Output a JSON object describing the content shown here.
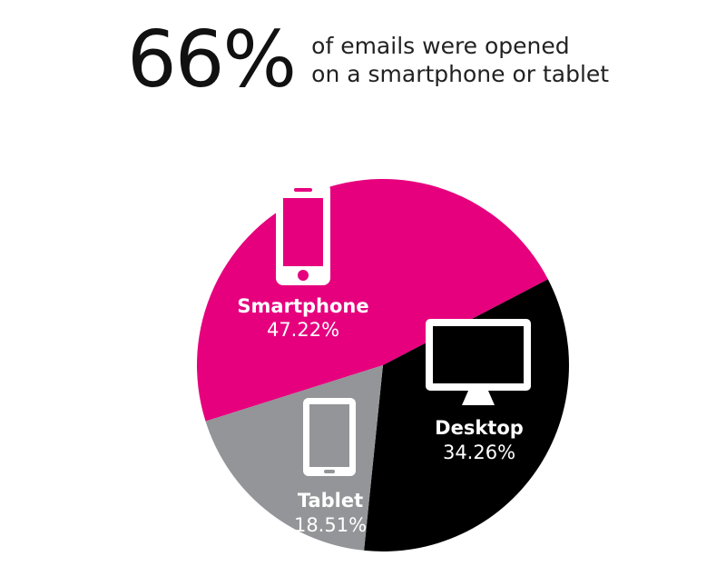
{
  "headline": {
    "stat": "66%",
    "line1": "of emails were opened",
    "line2": "on a smartphone or tablet"
  },
  "chart_data": {
    "type": "pie",
    "slices": [
      {
        "label": "Smartphone",
        "value": 47.22,
        "display": "47.22%",
        "color": "#e6007e",
        "icon": "smartphone-icon"
      },
      {
        "label": "Desktop",
        "value": 34.26,
        "display": "34.26%",
        "color": "#000000",
        "icon": "desktop-monitor-icon"
      },
      {
        "label": "Tablet",
        "value": 18.51,
        "display": "18.51%",
        "color": "#939598",
        "icon": "tablet-icon"
      }
    ]
  }
}
